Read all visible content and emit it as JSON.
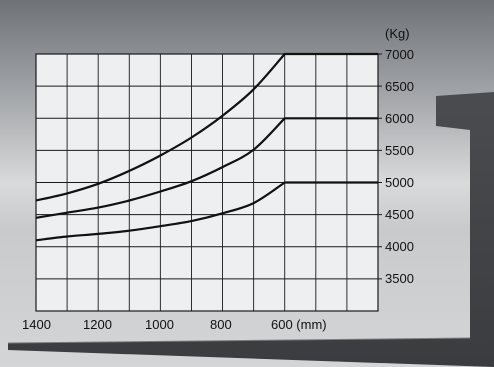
{
  "chart_data": {
    "type": "line",
    "title": "",
    "xlabel": "",
    "ylabel": "",
    "y_unit_label": "(Kg)",
    "x_tick_labels": [
      "1400",
      "1200",
      "1000",
      "800",
      "600 (mm)"
    ],
    "x_ticks": [
      1400,
      1200,
      1000,
      800,
      600
    ],
    "y_tick_labels": [
      "7000",
      "6500",
      "6000",
      "5500",
      "5000",
      "4500",
      "4000",
      "3500"
    ],
    "y_ticks": [
      7000,
      6500,
      6000,
      5500,
      5000,
      4500,
      4000,
      3500
    ],
    "xlim": [
      1400,
      300
    ],
    "ylim": [
      3000,
      7000
    ],
    "grid": true,
    "series": [
      {
        "x": [
          1400,
          1300,
          1200,
          1100,
          1000,
          900,
          800,
          700,
          600,
          500,
          400,
          300
        ],
        "values": [
          4720,
          4830,
          4980,
          5180,
          5420,
          5700,
          6040,
          6450,
          7000,
          7000,
          7000,
          7000
        ]
      },
      {
        "x": [
          1400,
          1300,
          1200,
          1100,
          1000,
          900,
          800,
          700,
          600,
          500,
          400,
          300
        ],
        "values": [
          4450,
          4530,
          4610,
          4720,
          4860,
          5020,
          5240,
          5510,
          6000,
          6000,
          6000,
          6000
        ]
      },
      {
        "x": [
          1400,
          1300,
          1200,
          1100,
          1000,
          900,
          800,
          700,
          600,
          500,
          400,
          300
        ],
        "values": [
          4100,
          4160,
          4200,
          4250,
          4320,
          4400,
          4520,
          4680,
          5000,
          5000,
          5000,
          5000
        ]
      }
    ]
  }
}
